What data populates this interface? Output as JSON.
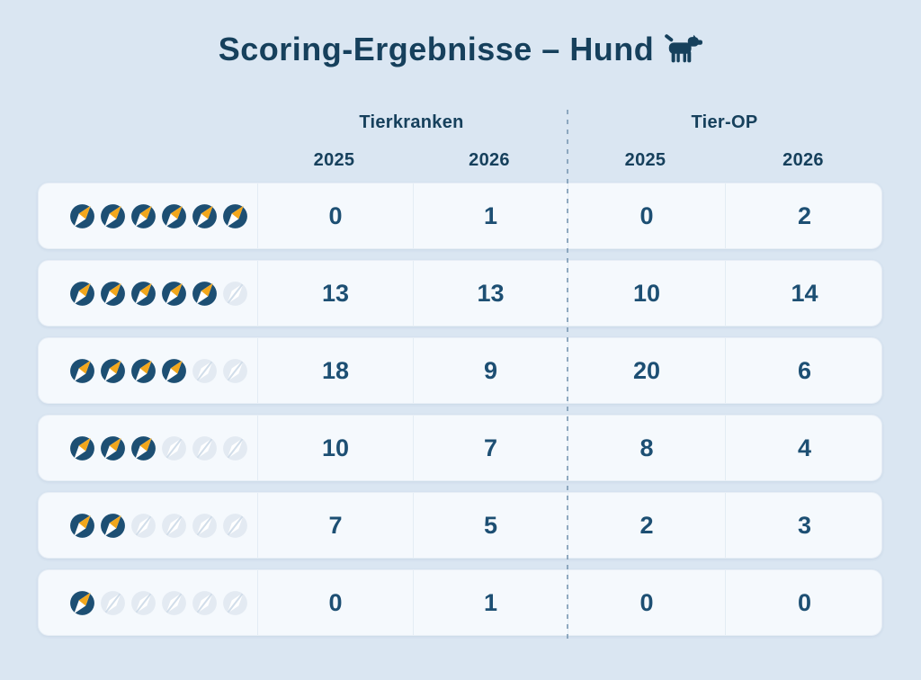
{
  "title": {
    "text": "Scoring-Ergebnisse – Hund",
    "icon": "dog-icon"
  },
  "icons": {
    "rating_icon": "compass-icon",
    "rating_icon_empty": "compass-icon-ghost"
  },
  "colors": {
    "background": "#dae6f2",
    "card": "#f5f9fd",
    "navy": "#1d4f73",
    "navy_dark": "#16405c",
    "gold": "#f2a71c",
    "ghost": "#e3eaf2",
    "ghost_slash": "#d2deea",
    "divider": "#7f9cb6"
  },
  "table": {
    "max_score": 6,
    "groups": [
      {
        "label": "Tierkranken",
        "years": [
          "2025",
          "2026"
        ]
      },
      {
        "label": "Tier-OP",
        "years": [
          "2025",
          "2026"
        ]
      }
    ],
    "rows": [
      {
        "score": 6,
        "values": [
          "0",
          "1",
          "0",
          "2"
        ]
      },
      {
        "score": 5,
        "values": [
          "13",
          "13",
          "10",
          "14"
        ]
      },
      {
        "score": 4,
        "values": [
          "18",
          "9",
          "20",
          "6"
        ]
      },
      {
        "score": 3,
        "values": [
          "10",
          "7",
          "8",
          "4"
        ]
      },
      {
        "score": 2,
        "values": [
          "7",
          "5",
          "2",
          "3"
        ]
      },
      {
        "score": 1,
        "values": [
          "0",
          "1",
          "0",
          "0"
        ]
      }
    ]
  },
  "chart_data": {
    "type": "table",
    "title": "Scoring-Ergebnisse – Hund",
    "column_groups": [
      "Tierkranken",
      "Tier-OP"
    ],
    "columns": [
      "Tierkranken 2025",
      "Tierkranken 2026",
      "Tier-OP 2025",
      "Tier-OP 2026"
    ],
    "row_labels_compass_score": [
      6,
      5,
      4,
      3,
      2,
      1
    ],
    "rows": [
      [
        0,
        1,
        0,
        2
      ],
      [
        13,
        13,
        10,
        14
      ],
      [
        18,
        9,
        20,
        6
      ],
      [
        10,
        7,
        8,
        4
      ],
      [
        7,
        5,
        2,
        3
      ],
      [
        0,
        1,
        0,
        0
      ]
    ],
    "legend_position": "none",
    "grid": false
  }
}
